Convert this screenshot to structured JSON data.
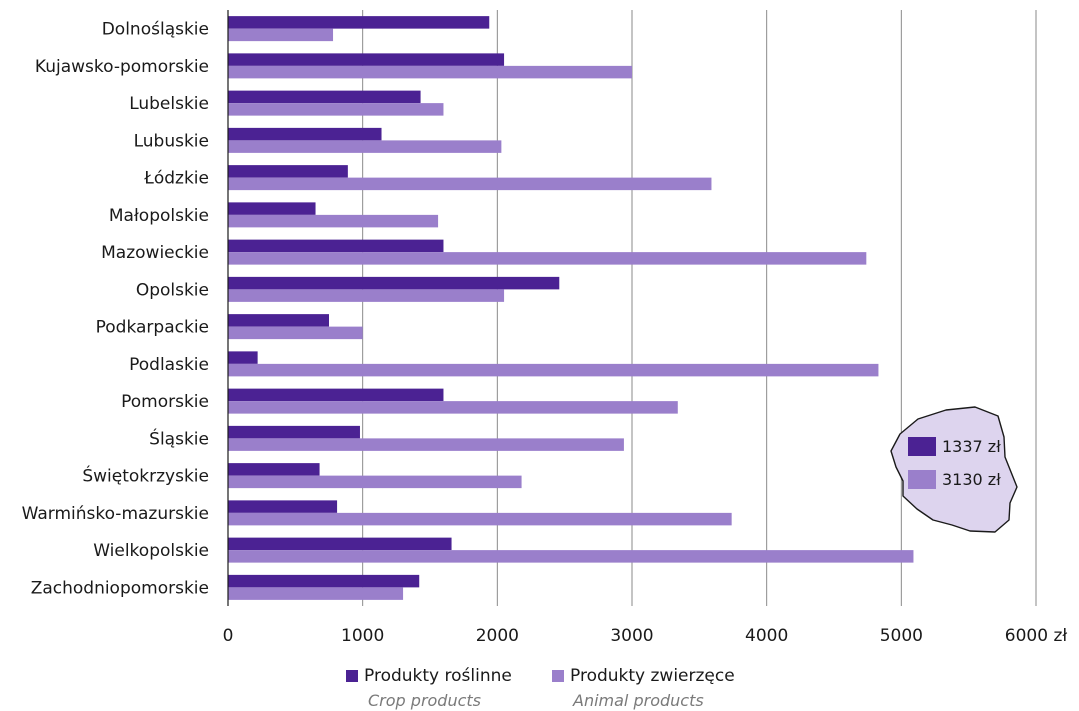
{
  "chart_data": {
    "type": "bar",
    "orientation": "horizontal",
    "categories": [
      "Dolnośląskie",
      "Kujawsko-pomorskie",
      "Lubelskie",
      "Lubuskie",
      "Łódzkie",
      "Małopolskie",
      "Mazowieckie",
      "Opolskie",
      "Podkarpackie",
      "Podlaskie",
      "Pomorskie",
      "Śląskie",
      "Świętokrzyskie",
      "Warmińsko-mazurskie",
      "Wielkopolskie",
      "Zachodniopomorskie"
    ],
    "series": [
      {
        "name": "Produkty roślinne",
        "name_en": "Crop products",
        "color": "#4b2293",
        "values": [
          1940,
          2050,
          1430,
          1140,
          890,
          650,
          1600,
          2460,
          750,
          220,
          1600,
          980,
          680,
          810,
          1660,
          1420
        ]
      },
      {
        "name": "Produkty zwierzęce",
        "name_en": "Animal products",
        "color": "#9a7fcb",
        "values": [
          780,
          3000,
          1600,
          2030,
          3590,
          1560,
          4740,
          2050,
          1000,
          4830,
          3340,
          2940,
          2180,
          3740,
          5090,
          1300
        ]
      }
    ],
    "x_ticks": [
      "0",
      "1000",
      "2000",
      "3000",
      "4000",
      "5000",
      "6000 zł"
    ],
    "xlim": [
      0,
      6000
    ],
    "grid": "vertical",
    "legend_position": "bottom-center",
    "inset": {
      "shape": "map of Poland",
      "items": [
        {
          "label": "1337 zł",
          "color": "#4b2293"
        },
        {
          "label": "3130 zł",
          "color": "#9a7fcb"
        }
      ],
      "fill_color": "#ddd4ee"
    }
  }
}
